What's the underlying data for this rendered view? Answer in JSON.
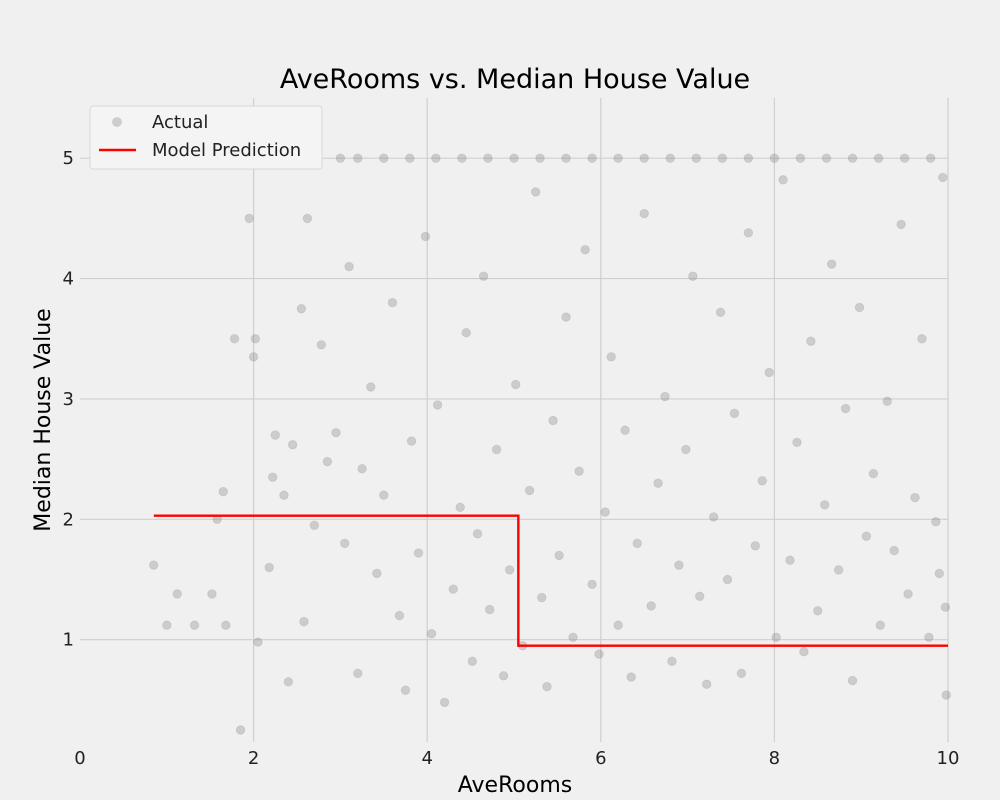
{
  "chart_data": {
    "type": "scatter",
    "title": "AveRooms vs. Median House Value",
    "xlabel": "AveRooms",
    "ylabel": "Median House Value",
    "xlim": [
      0,
      10
    ],
    "ylim": [
      0.15,
      5.5
    ],
    "xticks": [
      0,
      2,
      4,
      6,
      8,
      10
    ],
    "yticks": [
      1,
      2,
      3,
      4,
      5
    ],
    "grid": true,
    "legend": {
      "position": "top-left",
      "entries": [
        "Actual",
        "Model Prediction"
      ]
    },
    "series": [
      {
        "name": "Actual",
        "type": "scatter",
        "color": "#808080",
        "points": [
          [
            0.85,
            1.62
          ],
          [
            1.0,
            1.12
          ],
          [
            1.12,
            1.38
          ],
          [
            1.32,
            1.12
          ],
          [
            1.52,
            1.38
          ],
          [
            1.58,
            2.0
          ],
          [
            1.65,
            2.23
          ],
          [
            1.68,
            1.12
          ],
          [
            1.78,
            3.5
          ],
          [
            1.85,
            0.25
          ],
          [
            1.95,
            4.5
          ],
          [
            2.0,
            3.35
          ],
          [
            2.02,
            3.5
          ],
          [
            2.05,
            0.98
          ],
          [
            2.18,
            1.6
          ],
          [
            2.22,
            2.35
          ],
          [
            2.25,
            2.7
          ],
          [
            2.35,
            2.2
          ],
          [
            2.4,
            0.65
          ],
          [
            2.45,
            2.62
          ],
          [
            2.55,
            3.75
          ],
          [
            2.58,
            1.15
          ],
          [
            2.62,
            4.5
          ],
          [
            2.7,
            1.95
          ],
          [
            2.78,
            3.45
          ],
          [
            2.85,
            2.48
          ],
          [
            2.95,
            2.72
          ],
          [
            3.05,
            1.8
          ],
          [
            3.1,
            4.1
          ],
          [
            3.2,
            0.72
          ],
          [
            3.25,
            2.42
          ],
          [
            3.35,
            3.1
          ],
          [
            3.42,
            1.55
          ],
          [
            3.5,
            2.2
          ],
          [
            3.6,
            3.8
          ],
          [
            3.68,
            1.2
          ],
          [
            3.75,
            0.58
          ],
          [
            3.82,
            2.65
          ],
          [
            3.9,
            1.72
          ],
          [
            3.98,
            4.35
          ],
          [
            4.05,
            1.05
          ],
          [
            4.12,
            2.95
          ],
          [
            4.2,
            0.48
          ],
          [
            4.3,
            1.42
          ],
          [
            4.38,
            2.1
          ],
          [
            4.45,
            3.55
          ],
          [
            4.52,
            0.82
          ],
          [
            4.58,
            1.88
          ],
          [
            4.65,
            4.02
          ],
          [
            4.72,
            1.25
          ],
          [
            4.8,
            2.58
          ],
          [
            4.88,
            0.7
          ],
          [
            4.95,
            1.58
          ],
          [
            5.02,
            3.12
          ],
          [
            5.1,
            0.95
          ],
          [
            5.18,
            2.24
          ],
          [
            5.25,
            4.72
          ],
          [
            5.32,
            1.35
          ],
          [
            5.38,
            0.61
          ],
          [
            5.45,
            2.82
          ],
          [
            5.52,
            1.7
          ],
          [
            5.6,
            3.68
          ],
          [
            5.68,
            1.02
          ],
          [
            5.75,
            2.4
          ],
          [
            5.82,
            4.24
          ],
          [
            5.9,
            1.46
          ],
          [
            5.98,
            0.88
          ],
          [
            6.05,
            2.06
          ],
          [
            6.12,
            3.35
          ],
          [
            6.2,
            1.12
          ],
          [
            6.28,
            2.74
          ],
          [
            6.35,
            0.69
          ],
          [
            6.42,
            1.8
          ],
          [
            6.5,
            4.54
          ],
          [
            6.58,
            1.28
          ],
          [
            6.66,
            2.3
          ],
          [
            6.74,
            3.02
          ],
          [
            6.82,
            0.82
          ],
          [
            6.9,
            1.62
          ],
          [
            6.98,
            2.58
          ],
          [
            7.06,
            4.02
          ],
          [
            7.14,
            1.36
          ],
          [
            7.22,
            0.63
          ],
          [
            7.3,
            2.02
          ],
          [
            7.38,
            3.72
          ],
          [
            7.46,
            1.5
          ],
          [
            7.54,
            2.88
          ],
          [
            7.62,
            0.72
          ],
          [
            7.7,
            4.38
          ],
          [
            7.78,
            1.78
          ],
          [
            7.86,
            2.32
          ],
          [
            7.94,
            3.22
          ],
          [
            8.02,
            1.02
          ],
          [
            8.1,
            4.82
          ],
          [
            8.18,
            1.66
          ],
          [
            8.26,
            2.64
          ],
          [
            8.34,
            0.9
          ],
          [
            8.42,
            3.48
          ],
          [
            8.5,
            1.24
          ],
          [
            8.58,
            2.12
          ],
          [
            8.66,
            4.12
          ],
          [
            8.74,
            1.58
          ],
          [
            8.82,
            2.92
          ],
          [
            8.9,
            0.66
          ],
          [
            8.98,
            3.76
          ],
          [
            9.06,
            1.86
          ],
          [
            9.14,
            2.38
          ],
          [
            9.22,
            1.12
          ],
          [
            9.3,
            2.98
          ],
          [
            9.38,
            1.74
          ],
          [
            9.46,
            4.45
          ],
          [
            9.54,
            1.38
          ],
          [
            9.62,
            2.18
          ],
          [
            9.7,
            3.5
          ],
          [
            9.78,
            1.02
          ],
          [
            9.86,
            1.98
          ],
          [
            9.94,
            4.84
          ],
          [
            9.97,
            1.27
          ],
          [
            9.98,
            0.54
          ],
          [
            9.9,
            1.55
          ],
          [
            2.7,
            5.0
          ],
          [
            3.0,
            5.0
          ],
          [
            3.2,
            5.0
          ],
          [
            3.5,
            5.0
          ],
          [
            3.8,
            5.0
          ],
          [
            4.1,
            5.0
          ],
          [
            4.4,
            5.0
          ],
          [
            4.7,
            5.0
          ],
          [
            5.0,
            5.0
          ],
          [
            5.3,
            5.0
          ],
          [
            5.6,
            5.0
          ],
          [
            5.9,
            5.0
          ],
          [
            6.2,
            5.0
          ],
          [
            6.5,
            5.0
          ],
          [
            6.8,
            5.0
          ],
          [
            7.1,
            5.0
          ],
          [
            7.4,
            5.0
          ],
          [
            7.7,
            5.0
          ],
          [
            8.0,
            5.0
          ],
          [
            8.3,
            5.0
          ],
          [
            8.6,
            5.0
          ],
          [
            8.9,
            5.0
          ],
          [
            9.2,
            5.0
          ],
          [
            9.5,
            5.0
          ],
          [
            9.8,
            5.0
          ]
        ]
      },
      {
        "name": "Model Prediction",
        "type": "step",
        "color": "#ff0000",
        "x": [
          0.85,
          5.05,
          5.05,
          10.0
        ],
        "y": [
          2.03,
          2.03,
          0.95,
          0.95
        ]
      }
    ]
  }
}
